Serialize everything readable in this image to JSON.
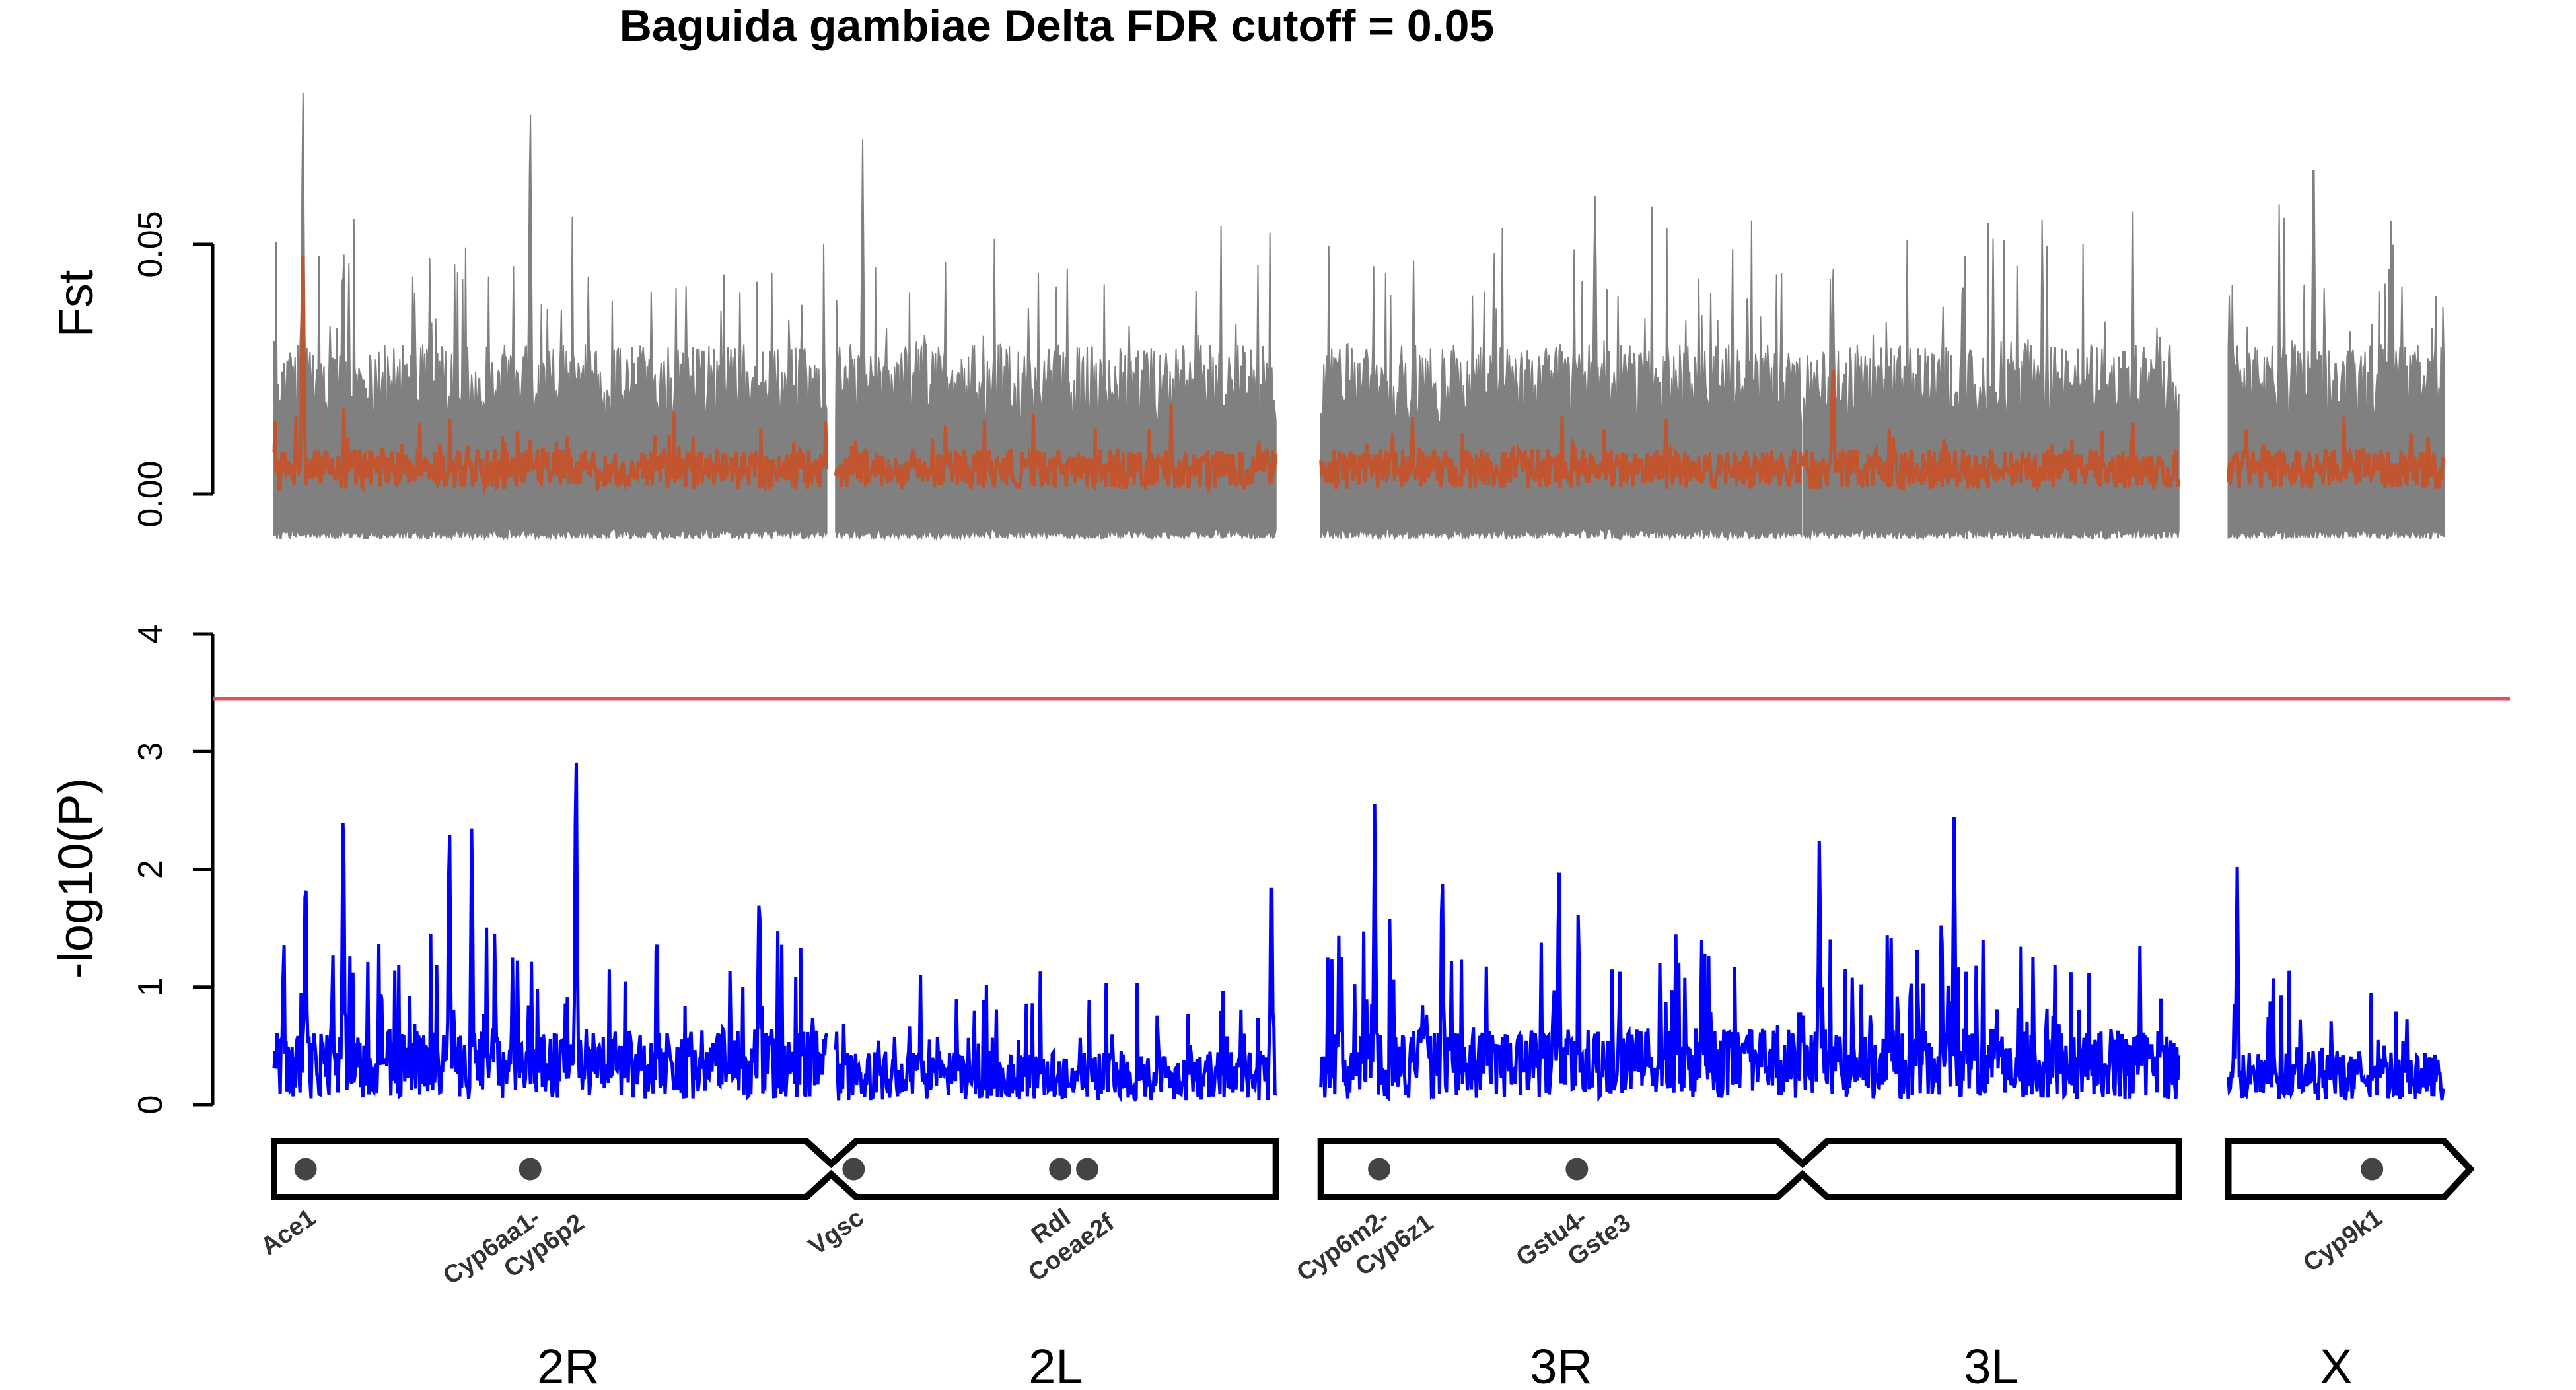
{
  "chart_data": {
    "type": "line",
    "title": "Baguida gambiae Delta FDR cutoff = 0.05",
    "panels": [
      {
        "name": "fst",
        "ylabel": "Fst",
        "ylim": [
          -0.01,
          0.09
        ],
        "yticks": [
          {
            "value": 0.0,
            "label": "0.00"
          },
          {
            "value": 0.05,
            "label": "0.05"
          }
        ],
        "series_colors": {
          "upper": "#808080",
          "mean": "#c0552f"
        }
      },
      {
        "name": "pvalue",
        "ylabel": "-log10(P)",
        "ylim": [
          0,
          4
        ],
        "yticks": [
          {
            "value": 0,
            "label": "0"
          },
          {
            "value": 1,
            "label": "1"
          },
          {
            "value": 2,
            "label": "2"
          },
          {
            "value": 3,
            "label": "3"
          },
          {
            "value": 4,
            "label": "4"
          }
        ],
        "threshold": 3.45,
        "threshold_color": "#e0505a",
        "line_color": "#0000ff"
      }
    ],
    "chromosomes": [
      {
        "name": "2R",
        "start": 0,
        "end": 61.5
      },
      {
        "name": "2L",
        "start": 62.5,
        "end": 111.5
      },
      {
        "name": "3R",
        "start": 116.5,
        "end": 170
      },
      {
        "name": "3L",
        "start": 170.2,
        "end": 212
      },
      {
        "name": "X",
        "start": 217.5,
        "end": 241.5
      }
    ],
    "gene_markers": [
      {
        "label": "Ace1",
        "pos": 3.5
      },
      {
        "label": "Cyp6aa1-\nCyp6p2",
        "pos": 28.5
      },
      {
        "label": "Vgsc",
        "pos": 64.5
      },
      {
        "label": "Rdl\nCoeae2f",
        "pos": 87.5
      },
      {
        "label": "",
        "pos": 90.5
      },
      {
        "label": "Cyp6m2-\nCyp6z1",
        "pos": 123
      },
      {
        "label": "Gstu4-\nGste3",
        "pos": 145
      },
      {
        "label": "Cyp9k1",
        "pos": 233.5
      }
    ],
    "fst_peaks": [
      {
        "pos": 3.2,
        "upper": 0.085,
        "mean": 0.051
      },
      {
        "pos": 28.5,
        "upper": 0.083,
        "mean": 0.012
      },
      {
        "pos": 65.5,
        "upper": 0.071,
        "mean": 0.008
      },
      {
        "pos": 147,
        "upper": 0.064,
        "mean": 0.006
      },
      {
        "pos": 173.5,
        "upper": 0.05,
        "mean": 0.028
      },
      {
        "pos": 227,
        "upper": 0.077,
        "mean": 0.006
      }
    ],
    "pvalue_peaks": [
      {
        "pos": 3.5,
        "value": 2.3
      },
      {
        "pos": 7.7,
        "value": 2.85
      },
      {
        "pos": 19.5,
        "value": 2.7
      },
      {
        "pos": 22,
        "value": 2.55
      },
      {
        "pos": 33.6,
        "value": 3.4
      },
      {
        "pos": 54,
        "value": 2.1
      },
      {
        "pos": 111,
        "value": 2.35
      },
      {
        "pos": 122.5,
        "value": 2.62
      },
      {
        "pos": 130,
        "value": 2.25
      },
      {
        "pos": 143,
        "value": 2.22
      },
      {
        "pos": 172,
        "value": 2.45
      },
      {
        "pos": 187,
        "value": 2.58
      },
      {
        "pos": 218.5,
        "value": 2.02
      }
    ]
  }
}
